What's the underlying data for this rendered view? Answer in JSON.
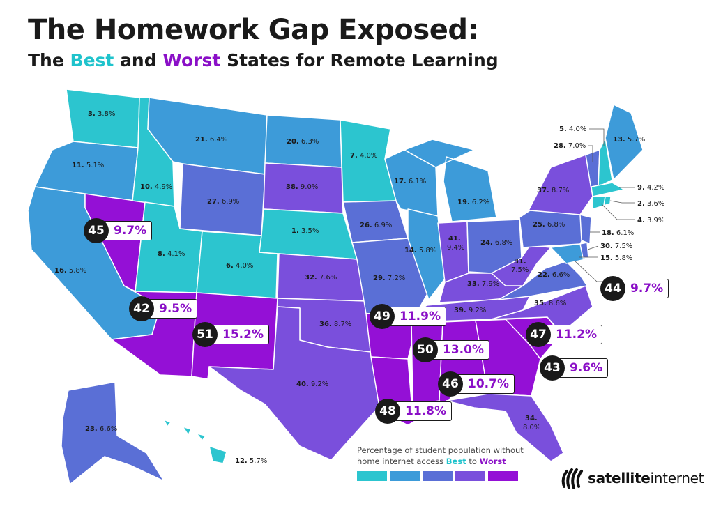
{
  "header": {
    "title": "The Homework Gap Exposed:",
    "subtitle_pre": "The ",
    "subtitle_best": "Best",
    "subtitle_mid": " and ",
    "subtitle_worst": "Worst",
    "subtitle_post": " States for Remote Learning"
  },
  "colors": {
    "tier1": "#2cc5cf",
    "tier2": "#3d9bd9",
    "tier3": "#5a6fd6",
    "tier4": "#7a4fdc",
    "tier5": "#9410d6",
    "highlight_text": "#8a0fc7",
    "best_text": "#1fc3cc"
  },
  "states": [
    {
      "name": "WA",
      "rank": "3.",
      "pct": "3.8%"
    },
    {
      "name": "OR",
      "rank": "11.",
      "pct": "5.1%"
    },
    {
      "name": "CA",
      "rank": "16.",
      "pct": "5.8%"
    },
    {
      "name": "ID",
      "rank": "10.",
      "pct": "4.9%"
    },
    {
      "name": "MT",
      "rank": "21.",
      "pct": "6.4%"
    },
    {
      "name": "WY",
      "rank": "27.",
      "pct": "6.9%"
    },
    {
      "name": "UT",
      "rank": "8.",
      "pct": "4.1%"
    },
    {
      "name": "CO",
      "rank": "6.",
      "pct": "4.0%"
    },
    {
      "name": "ND",
      "rank": "20.",
      "pct": "6.3%"
    },
    {
      "name": "SD",
      "rank": "38.",
      "pct": "9.0%"
    },
    {
      "name": "NE",
      "rank": "1.",
      "pct": "3.5%"
    },
    {
      "name": "KS",
      "rank": "32.",
      "pct": "7.6%"
    },
    {
      "name": "OK",
      "rank": "36.",
      "pct": "8.7%"
    },
    {
      "name": "TX",
      "rank": "40.",
      "pct": "9.2%"
    },
    {
      "name": "MN",
      "rank": "7.",
      "pct": "4.0%"
    },
    {
      "name": "IA",
      "rank": "26.",
      "pct": "6.9%"
    },
    {
      "name": "MO",
      "rank": "29.",
      "pct": "7.2%"
    },
    {
      "name": "WI",
      "rank": "17.",
      "pct": "6.1%"
    },
    {
      "name": "IL",
      "rank": "14.",
      "pct": "5.8%"
    },
    {
      "name": "MI",
      "rank": "19.",
      "pct": "6.2%"
    },
    {
      "name": "IN",
      "rank": "41.",
      "pct": "9.4%"
    },
    {
      "name": "OH",
      "rank": "24.",
      "pct": "6.8%"
    },
    {
      "name": "KY",
      "rank": "33.",
      "pct": "7.9%"
    },
    {
      "name": "TN",
      "rank": "39.",
      "pct": "9.2%"
    },
    {
      "name": "WV",
      "rank": "31.",
      "pct": "7.5%"
    },
    {
      "name": "VA",
      "rank": "22.",
      "pct": "6.6%"
    },
    {
      "name": "NC",
      "rank": "35.",
      "pct": "8.6%"
    },
    {
      "name": "PA",
      "rank": "25.",
      "pct": "6.8%"
    },
    {
      "name": "NY",
      "rank": "37.",
      "pct": "8.7%"
    },
    {
      "name": "FL",
      "rank": "34.",
      "pct": "8.0%"
    },
    {
      "name": "AK",
      "rank": "23.",
      "pct": "6.6%"
    },
    {
      "name": "HI",
      "rank": "12.",
      "pct": "5.7%"
    },
    {
      "name": "ME",
      "rank": "13.",
      "pct": "5.7%"
    },
    {
      "name": "NH",
      "rank": "5.",
      "pct": "4.0%"
    },
    {
      "name": "VT",
      "rank": "28.",
      "pct": "7.0%"
    },
    {
      "name": "MA",
      "rank": "9.",
      "pct": "4.2%"
    },
    {
      "name": "RI",
      "rank": "2.",
      "pct": "3.6%"
    },
    {
      "name": "CT",
      "rank": "4.",
      "pct": "3.9%"
    },
    {
      "name": "NJ",
      "rank": "18.",
      "pct": "6.1%"
    },
    {
      "name": "DE",
      "rank": "30.",
      "pct": "7.5%"
    },
    {
      "name": "MD",
      "rank": "15.",
      "pct": "5.8%"
    }
  ],
  "worst": [
    {
      "name": "NV",
      "rank": "45",
      "pct": "9.7%"
    },
    {
      "name": "AZ",
      "rank": "42",
      "pct": "9.5%"
    },
    {
      "name": "NM",
      "rank": "51",
      "pct": "15.2%"
    },
    {
      "name": "AR",
      "rank": "49",
      "pct": "11.9%"
    },
    {
      "name": "MS",
      "rank": "50",
      "pct": "13.0%"
    },
    {
      "name": "LA",
      "rank": "48",
      "pct": "11.8%"
    },
    {
      "name": "AL",
      "rank": "46",
      "pct": "10.7%"
    },
    {
      "name": "SC",
      "rank": "47",
      "pct": "11.2%"
    },
    {
      "name": "GA",
      "rank": "43",
      "pct": "9.6%"
    },
    {
      "name": "DC",
      "rank": "44",
      "pct": "9.7%"
    }
  ],
  "legend": {
    "line1": "Percentage of student population without",
    "line2_pre": "home internet access ",
    "best": "Best",
    "to": " to ",
    "worst": "Worst"
  },
  "brand": {
    "name_bold": "satellite",
    "name_regular": "internet",
    "icon": "satellite-signal-icon"
  }
}
